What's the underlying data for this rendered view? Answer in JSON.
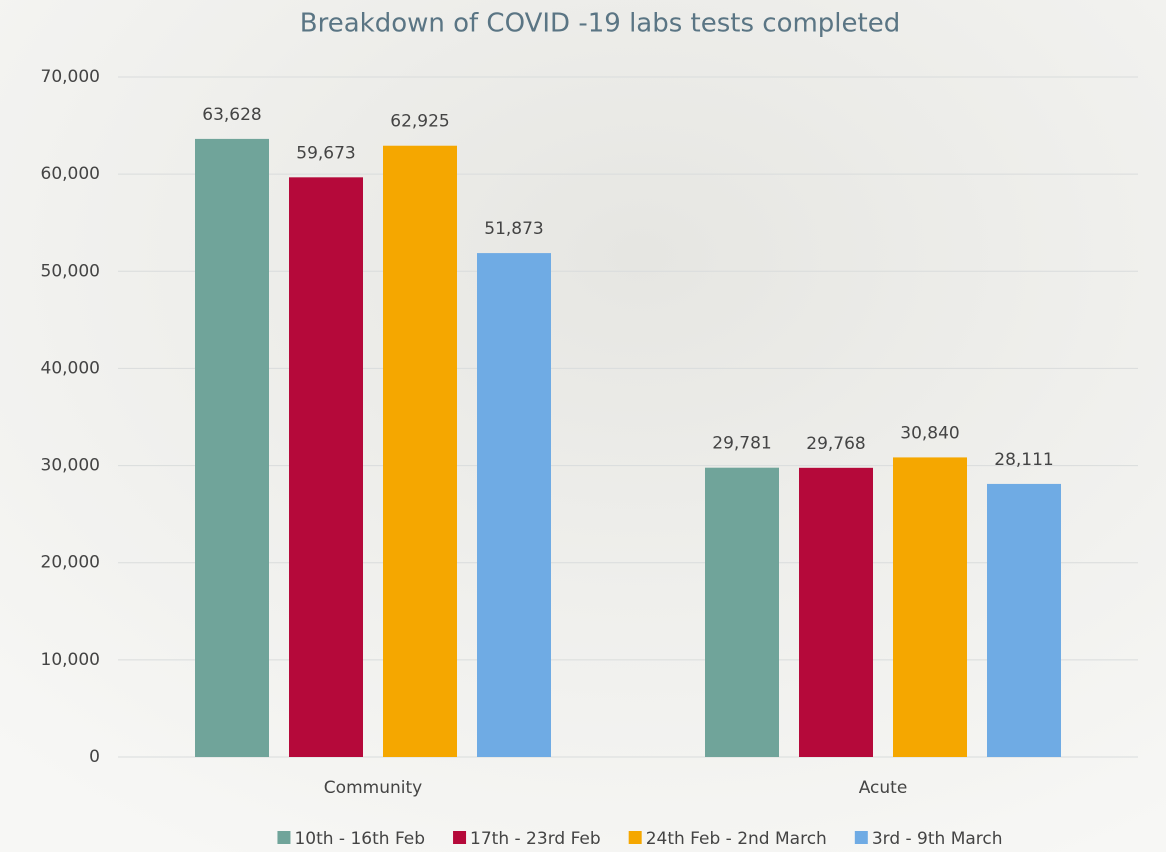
{
  "chart_data": {
    "type": "bar",
    "title": "Breakdown of COVID -19 labs tests completed",
    "categories": [
      "Community",
      "Acute"
    ],
    "series": [
      {
        "name": "10th - 16th Feb",
        "color": "#70a49a",
        "values": [
          63628,
          29781
        ],
        "value_labels": [
          "63,628",
          "29,781"
        ]
      },
      {
        "name": "17th - 23rd Feb",
        "color": "#b5093a",
        "values": [
          59673,
          29768
        ],
        "value_labels": [
          "59,673",
          "29,768"
        ]
      },
      {
        "name": "24th Feb - 2nd March",
        "color": "#f5a700",
        "values": [
          62925,
          30840
        ],
        "value_labels": [
          "62,925",
          "30,840"
        ]
      },
      {
        "name": "3rd - 9th March",
        "color": "#6fabe4",
        "values": [
          51873,
          28111
        ],
        "value_labels": [
          "51,873",
          "28,111"
        ]
      }
    ],
    "ylim": [
      0,
      70000
    ],
    "yticks": [
      0,
      {
        "value": 10000,
        "label": "10,000"
      },
      {
        "value": 20000,
        "label": "20,000"
      },
      {
        "value": 30000,
        "label": "30,000"
      },
      {
        "value": 40000,
        "label": "40,000"
      },
      {
        "value": 50000,
        "label": "50,000"
      },
      {
        "value": 60000,
        "label": "60,000"
      },
      {
        "value": 70000,
        "label": "70,000"
      }
    ],
    "grid": true,
    "legend": "bottom"
  }
}
